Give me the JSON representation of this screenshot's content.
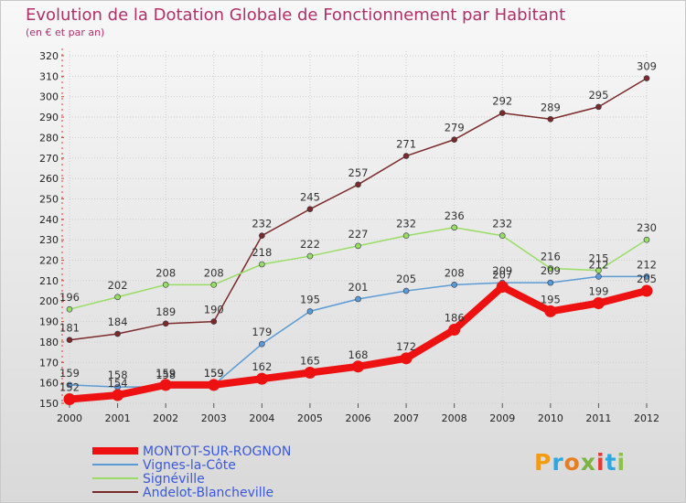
{
  "title": "Evolution de la Dotation Globale de Fonctionnement par Habitant",
  "subtitle": "(en € et par an)",
  "logo": {
    "text": "Proxiti",
    "letter_colors": [
      "#f39c12",
      "#2ea7e0",
      "#e67e22",
      "#7cb342",
      "#e53935",
      "#2ea7e0",
      "#8bc34a"
    ]
  },
  "chart_data": {
    "type": "line",
    "title": "Evolution de la Dotation Globale de Fonctionnement par Habitant",
    "subtitle": "(en € et par an)",
    "x": [
      "2000",
      "2001",
      "2002",
      "2003",
      "2004",
      "2005",
      "2006",
      "2007",
      "2008",
      "2009",
      "2010",
      "2011",
      "2012"
    ],
    "ylim": [
      150,
      320
    ],
    "yticks": [
      150,
      160,
      170,
      180,
      190,
      200,
      210,
      220,
      230,
      240,
      250,
      260,
      270,
      280,
      290,
      300,
      310,
      320
    ],
    "grid": true,
    "legend_position": "bottom-left",
    "series": [
      {
        "name": "Andelot-Blancheville",
        "color": "#7b2a2a",
        "width": "thin",
        "values": [
          181,
          184,
          189,
          190,
          232,
          245,
          257,
          271,
          279,
          292,
          289,
          295,
          309
        ],
        "labels": [
          "181",
          "184",
          "189",
          "190",
          "232",
          "245",
          "257",
          "271",
          "279",
          "292",
          "289",
          "295",
          "309"
        ]
      },
      {
        "name": "Signéville",
        "color": "#99dd66",
        "width": "thin",
        "values": [
          196,
          202,
          208,
          208,
          218,
          222,
          227,
          232,
          236,
          232,
          216,
          215,
          230
        ],
        "labels": [
          "196",
          "202",
          "208",
          "208",
          "218",
          "222",
          "227",
          "232",
          "236",
          "232",
          "216",
          "215",
          "230"
        ]
      },
      {
        "name": "Vignes-la-Côte",
        "color": "#5b9bd5",
        "width": "thin",
        "values": [
          159,
          158,
          158,
          159,
          179,
          195,
          201,
          205,
          208,
          209,
          209,
          212,
          212
        ],
        "labels": [
          "159",
          "158",
          "158",
          "159",
          "179",
          "195",
          "201",
          "205",
          "208",
          "209",
          "209",
          "212",
          "212"
        ]
      },
      {
        "name": "MONTOT-SUR-ROGNON",
        "color": "#ee1111",
        "width": "thick",
        "values": [
          152,
          154,
          159,
          159,
          162,
          165,
          168,
          172,
          186,
          207,
          195,
          199,
          205
        ],
        "labels": [
          "152",
          "154",
          "159",
          "159",
          "162",
          "165",
          "168",
          "172",
          "186",
          "207",
          "195",
          "199",
          "205"
        ]
      }
    ],
    "legend_order": [
      "MONTOT-SUR-ROGNON",
      "Vignes-la-Côte",
      "Signéville",
      "Andelot-Blancheville"
    ]
  }
}
